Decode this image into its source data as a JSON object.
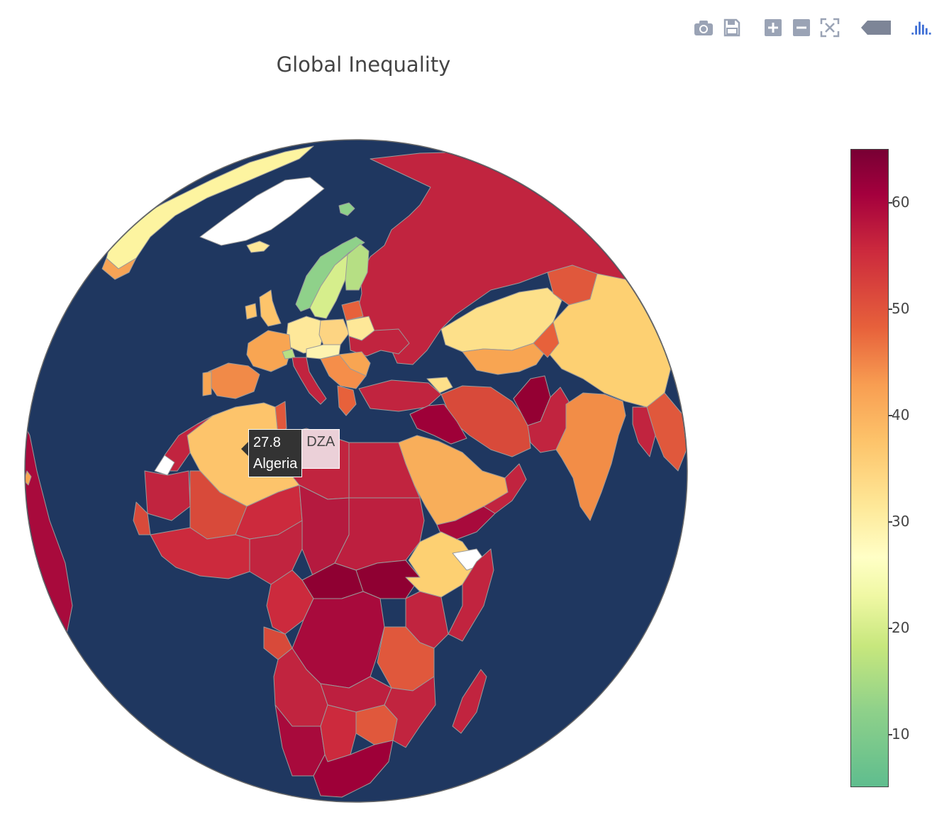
{
  "title": "Global Inequality",
  "ocean_color": "#1f3760",
  "land_default_color": "#cc2a3d",
  "toolbar": {
    "icons": [
      "camera-icon",
      "save-icon",
      "zoom-in-icon",
      "zoom-out-icon",
      "reset-view-icon",
      "hover-mode-icon",
      "plotly-logo-icon"
    ]
  },
  "colorbar": {
    "ticks": [
      "60",
      "50",
      "40",
      "30",
      "20",
      "10"
    ],
    "min": 5,
    "max": 65
  },
  "hover": {
    "value": "27.8",
    "country": "Algeria",
    "code": "DZA"
  }
}
